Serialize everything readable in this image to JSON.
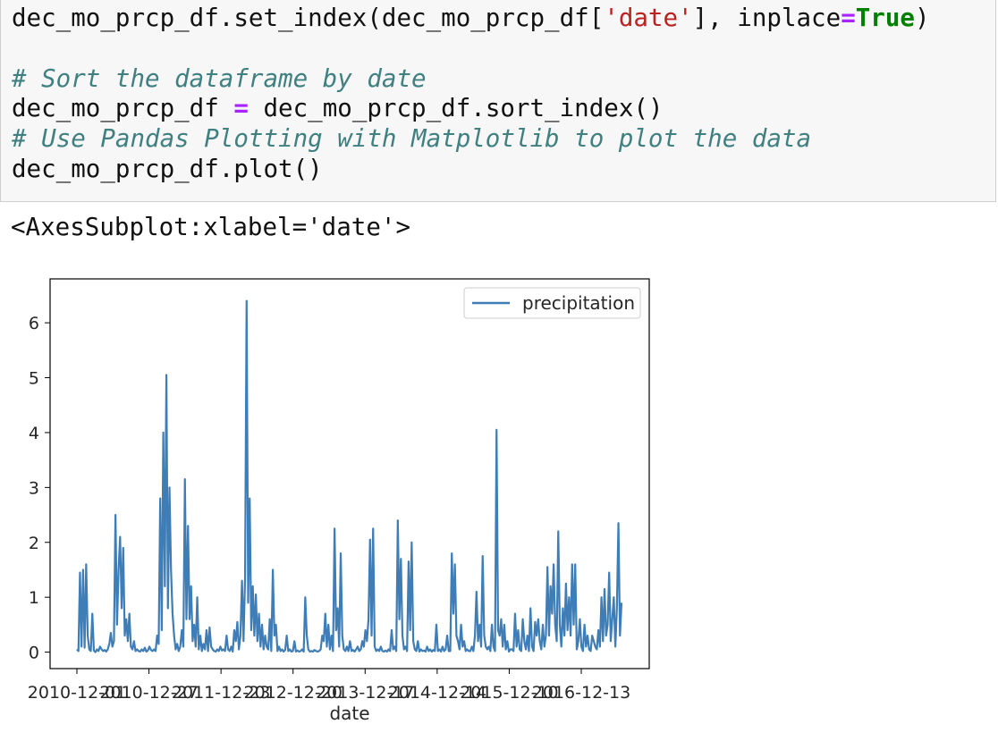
{
  "code_cell": {
    "line1": {
      "a": "dec_mo_prcp_df.set_index(dec_mo_prcp_df[",
      "b": "'date'",
      "c": "], inplace",
      "d": "=",
      "e": "True",
      "f": ")"
    },
    "line3": "# Sort the dataframe by date",
    "line4": {
      "a": "dec_mo_prcp_df ",
      "b": "=",
      "c": " dec_mo_prcp_df.sort_index()"
    },
    "line5": "# Use Pandas Plotting with Matplotlib to plot the data",
    "line6": "dec_mo_prcp_df.plot()"
  },
  "output": {
    "repr": "<AxesSubplot:xlabel='date'>"
  },
  "colors": {
    "line": "#3f7db6",
    "code_bg": "#f7f7f7",
    "comment": "#408080",
    "string": "#ba2121",
    "keyword": "#008000",
    "operator": "#aa22ff"
  },
  "chart_data": {
    "type": "line",
    "xlabel": "date",
    "ylabel": "",
    "ylim": [
      -0.3,
      6.8
    ],
    "yticks": [
      "0",
      "1",
      "2",
      "3",
      "4",
      "5",
      "6"
    ],
    "xticks": [
      "2010-12-01",
      "2010-12-27",
      "2011-12-23",
      "2012-12-20",
      "2013-12-17",
      "2014-12-14",
      "2015-12-10",
      "2016-12-13"
    ],
    "xtick_labels_as_rendered": "2010-12201 0-12207 1-12203 2-12203 3-12207 4-12205 5-12201 6-12-13",
    "legend": {
      "labels": [
        "precipitation"
      ],
      "placement": "top-right"
    },
    "grid": false,
    "series": [
      {
        "name": "precipitation",
        "values": [
          0.05,
          0.02,
          1.45,
          0.1,
          1.5,
          0.08,
          1.6,
          0.3,
          0.05,
          0.02,
          0.7,
          0.03,
          0.0,
          0.05,
          0.02,
          0.1,
          0.05,
          0.02,
          0.04,
          0.01,
          0.05,
          0.15,
          0.35,
          0.1,
          0.2,
          2.5,
          0.5,
          1.5,
          2.1,
          0.8,
          1.9,
          0.3,
          0.6,
          0.2,
          0.7,
          0.1,
          0.05,
          0.2,
          0.02,
          0.05,
          0.02,
          0.01,
          0.05,
          0.02,
          0.08,
          0.01,
          0.03,
          0.1,
          0.04,
          0.02,
          0.05,
          0.02,
          0.3,
          0.15,
          2.8,
          0.4,
          4.0,
          1.2,
          5.05,
          0.8,
          3.0,
          1.5,
          0.7,
          0.3,
          0.05,
          0.15,
          0.02,
          0.1,
          0.4,
          0.1,
          3.15,
          0.6,
          2.3,
          0.6,
          1.2,
          0.2,
          0.5,
          0.1,
          1.0,
          0.05,
          0.3,
          0.02,
          0.15,
          0.05,
          0.4,
          0.02,
          0.45,
          0.1,
          0.05,
          0.02,
          0.01,
          0.05,
          0.02,
          0.1,
          0.03,
          0.05,
          0.02,
          0.3,
          0.05,
          0.02,
          0.1,
          0.01,
          0.4,
          0.2,
          0.55,
          0.05,
          0.3,
          1.3,
          0.2,
          1.35,
          6.4,
          0.9,
          2.8,
          0.4,
          1.2,
          0.3,
          1.05,
          0.2,
          0.7,
          0.1,
          0.5,
          0.05,
          0.3,
          0.1,
          0.05,
          0.6,
          0.02,
          1.5,
          0.3,
          0.5,
          0.02,
          0.1,
          0.02,
          0.05,
          0.01,
          0.04,
          0.3,
          0.02,
          0.05,
          0.01,
          0.02,
          0.2,
          0.01,
          0.03,
          0.01,
          0.02,
          0.05,
          0.01,
          1.0,
          0.3,
          0.05,
          0.01,
          0.02,
          0.01,
          0.04,
          0.02,
          0.01,
          0.02,
          0.05,
          0.3,
          0.2,
          0.7,
          0.1,
          0.5,
          0.05,
          0.3,
          0.02,
          2.25,
          0.4,
          0.8,
          0.1,
          1.8,
          0.3,
          0.05,
          0.02,
          0.1,
          0.02,
          0.2,
          0.02,
          0.04,
          0.01,
          0.05,
          0.1,
          0.02,
          0.05,
          0.2,
          0.1,
          0.4,
          0.2,
          0.6,
          2.05,
          0.3,
          2.25,
          0.1,
          0.02,
          0.05,
          0.02,
          0.1,
          0.02,
          0.01,
          0.03,
          0.01,
          0.05,
          0.02,
          0.4,
          0.05,
          0.1,
          0.02,
          2.4,
          0.6,
          1.7,
          0.3,
          0.05,
          0.1,
          0.02,
          1.65,
          0.4,
          2.0,
          0.2,
          0.05,
          0.02,
          0.2,
          0.01,
          0.05,
          0.02,
          0.03,
          0.01,
          0.1,
          0.02,
          0.05,
          0.01,
          0.04,
          0.02,
          0.5,
          0.02,
          0.05,
          0.01,
          0.1,
          0.02,
          0.05,
          0.3,
          0.02,
          0.02,
          1.8,
          0.7,
          1.6,
          0.3,
          0.2,
          0.05,
          0.5,
          0.1,
          0.2,
          0.02,
          0.05,
          0.02,
          0.02,
          0.1,
          0.02,
          0.3,
          1.1,
          0.2,
          0.5,
          0.1,
          1.75,
          0.3,
          0.1,
          0.05,
          0.1,
          0.02,
          0.5,
          0.1,
          0.02,
          4.05,
          0.4,
          0.3,
          0.6,
          0.1,
          0.5,
          0.05,
          0.2,
          0.01,
          0.05,
          0.05,
          0.02,
          0.7,
          0.1,
          0.4,
          0.05,
          0.02,
          0.6,
          0.2,
          0.05,
          0.3,
          0.02,
          0.8,
          0.1,
          0.02,
          0.55,
          0.3,
          0.6,
          0.2,
          0.05,
          0.5,
          0.1,
          0.3,
          1.55,
          0.3,
          1.2,
          0.7,
          1.6,
          0.5,
          0.2,
          2.2,
          0.5,
          0.1,
          0.8,
          0.3,
          1.25,
          0.4,
          1.0,
          0.3,
          1.6,
          0.5,
          1.6,
          0.05,
          0.2,
          0.6,
          0.1,
          0.02,
          0.5,
          0.1,
          0.3,
          0.05,
          0.02,
          0.3,
          0.2,
          0.1,
          0.05,
          0.4,
          0.1,
          1.0,
          0.2,
          1.15,
          0.3,
          0.5,
          1.45,
          0.2,
          0.6,
          1.0,
          0.1,
          0.8,
          2.35,
          0.3,
          0.9
        ]
      }
    ]
  }
}
